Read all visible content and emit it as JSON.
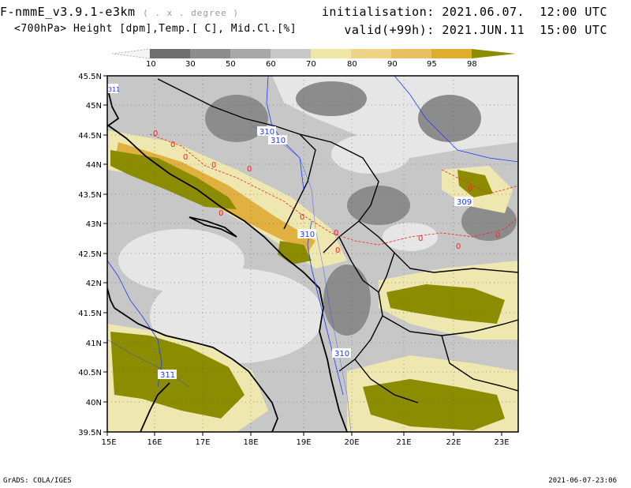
{
  "header": {
    "model": "F-nmmE_v3.9.1-e3km",
    "grid": "( . x . degree )",
    "variables": "<700hPa> Height [dpm],Temp.[ C], Mid.Cl.[%]",
    "init_label": "initialisation:",
    "init_value": "2021.06.07.  12:00 UTC",
    "valid_label": "valid(+99h):",
    "valid_value": "2021.JUN.11  15:00 UTC"
  },
  "colorbar": {
    "levels": [
      "10",
      "30",
      "50",
      "60",
      "70",
      "80",
      "90",
      "95",
      "98"
    ],
    "colors": [
      "#f4f4f4",
      "#6e6e6e",
      "#8c8c8c",
      "#a8a8a8",
      "#c8c8c8",
      "#efe7a8",
      "#efd488",
      "#e8c060",
      "#e0ac30",
      "#8c8c00"
    ]
  },
  "map": {
    "lat_labels": [
      "45.5N",
      "45N",
      "44.5N",
      "44N",
      "43.5N",
      "43N",
      "42.5N",
      "42N",
      "41.5N",
      "41N",
      "40.5N",
      "40N",
      "39.5N"
    ],
    "lon_labels": [
      "15E",
      "16E",
      "17E",
      "18E",
      "19E",
      "20E",
      "21E",
      "22E",
      "23E"
    ],
    "height_labels": [
      "311",
      "310",
      "310",
      "310",
      "309",
      "310",
      "311"
    ],
    "temp_labels": [
      "0",
      "0",
      "0",
      "0",
      "0",
      "0",
      "0",
      "0",
      "0",
      "0",
      "0",
      "0",
      "0"
    ],
    "colors": {
      "sea": "#e6e6e6",
      "cloud_olive": "#8c8c00",
      "cloud_gold": "#e0b040",
      "cloud_cream": "#efe7b0",
      "cloud_gray": "#8c8c8c",
      "height_contour": "#1a3cff",
      "temp_contour": "#ff2020"
    }
  },
  "footer": {
    "left": "GrADS: COLA/IGES",
    "right": "2021-06-07-23:06"
  }
}
